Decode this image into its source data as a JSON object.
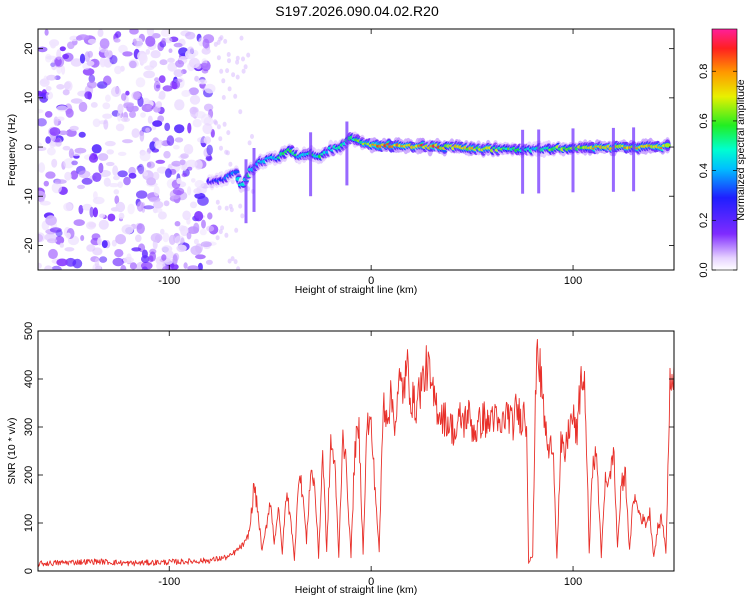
{
  "figure": {
    "title": "S197.2026.090.04.02.R20"
  },
  "chart_data": [
    {
      "type": "heatmap",
      "name": "spectrogram",
      "xlabel": "Height of straight line (km)",
      "ylabel": "Frequency (Hz)",
      "xlim": [
        -165,
        150
      ],
      "ylim": [
        -25,
        24
      ],
      "xticks": [
        -100,
        0,
        100
      ],
      "xtick_labels": [
        "-100",
        "0",
        "100"
      ],
      "yticks": [
        -20,
        -10,
        0,
        10,
        20
      ],
      "ytick_labels": [
        "-20",
        "-10",
        "0",
        "10",
        "20"
      ],
      "colorbar": {
        "label": "Normalized spectral amplitude",
        "range": [
          0.0,
          0.97
        ],
        "ticks": [
          0.0,
          0.2,
          0.4,
          0.6,
          0.8
        ],
        "tick_labels": [
          "0.0",
          "0.2",
          "0.4",
          "0.6",
          "0.8"
        ],
        "colormap": "rainbow (white → purple → blue → cyan → green → yellow → orange → red → magenta)"
      },
      "signal_ridge": {
        "x": [
          -80,
          -75,
          -70,
          -67,
          -64,
          -60,
          -55,
          -50,
          -45,
          -40,
          -35,
          -30,
          -25,
          -20,
          -15,
          -10,
          -5,
          0,
          10,
          20,
          30,
          40,
          50,
          60,
          70,
          80,
          90,
          100,
          110,
          120,
          130,
          140,
          148
        ],
        "freq": [
          -7,
          -7,
          -6,
          -5,
          -8,
          -5,
          -3,
          -2.5,
          -2,
          -0.5,
          -2,
          -1,
          -2,
          -0.5,
          0,
          2,
          1,
          0.5,
          0.3,
          0.2,
          0.1,
          0,
          -0.2,
          -0.4,
          -0.5,
          -0.5,
          -0.3,
          -0.2,
          -0.1,
          -0.1,
          0,
          0,
          0.1
        ],
        "amplitude": [
          0.25,
          0.3,
          0.35,
          0.4,
          0.45,
          0.5,
          0.45,
          0.4,
          0.5,
          0.6,
          0.45,
          0.5,
          0.55,
          0.45,
          0.5,
          0.55,
          0.6,
          0.8,
          0.85,
          0.8,
          0.85,
          0.7,
          0.75,
          0.65,
          0.55,
          0.45,
          0.6,
          0.65,
          0.75,
          0.8,
          0.75,
          0.8,
          0.7
        ]
      },
      "noise_region_x": [
        -165,
        -78
      ]
    },
    {
      "type": "line",
      "name": "snr",
      "xlabel": "Height of straight line (km)",
      "ylabel": "SNR (10 * v/v)",
      "xlim": [
        -165,
        150
      ],
      "ylim": [
        0,
        500
      ],
      "xticks": [
        -100,
        0,
        100
      ],
      "xtick_labels": [
        "-100",
        "0",
        "100"
      ],
      "yticks": [
        0,
        100,
        200,
        300,
        400,
        500
      ],
      "ytick_labels": [
        "0",
        "100",
        "200",
        "300",
        "400",
        "500"
      ],
      "series": [
        {
          "name": "SNR",
          "color": "#e8302a",
          "x": [
            -165,
            -150,
            -135,
            -120,
            -105,
            -90,
            -80,
            -70,
            -66,
            -62,
            -60,
            -58,
            -56,
            -54,
            -52,
            -50,
            -48,
            -46,
            -44,
            -42,
            -40,
            -38,
            -36,
            -34,
            -32,
            -30,
            -28,
            -26,
            -24,
            -22,
            -20,
            -18,
            -16,
            -14,
            -12,
            -10,
            -8,
            -6,
            -4,
            -2,
            0,
            2,
            4,
            6,
            8,
            10,
            12,
            14,
            16,
            18,
            20,
            22,
            24,
            26,
            28,
            30,
            32,
            34,
            36,
            38,
            40,
            42,
            44,
            46,
            48,
            50,
            52,
            54,
            56,
            58,
            60,
            62,
            64,
            66,
            68,
            70,
            72,
            74,
            76,
            77,
            78,
            79,
            80,
            82,
            84,
            86,
            88,
            90,
            92,
            94,
            96,
            98,
            100,
            102,
            104,
            106,
            108,
            110,
            112,
            114,
            116,
            118,
            120,
            122,
            124,
            126,
            128,
            130,
            132,
            134,
            136,
            138,
            140,
            142,
            144,
            146,
            148,
            150
          ],
          "y": [
            15,
            18,
            20,
            16,
            18,
            20,
            22,
            30,
            45,
            60,
            90,
            180,
            120,
            40,
            90,
            150,
            60,
            130,
            40,
            160,
            120,
            20,
            200,
            170,
            60,
            210,
            180,
            30,
            250,
            40,
            270,
            220,
            30,
            300,
            190,
            30,
            260,
            290,
            40,
            310,
            300,
            170,
            40,
            350,
            330,
            360,
            310,
            390,
            380,
            420,
            360,
            340,
            380,
            400,
            430,
            370,
            350,
            330,
            320,
            310,
            300,
            280,
            320,
            310,
            330,
            300,
            290,
            310,
            320,
            300,
            330,
            310,
            290,
            320,
            330,
            300,
            340,
            320,
            330,
            300,
            20,
            30,
            30,
            490,
            400,
            310,
            240,
            280,
            30,
            260,
            240,
            300,
            320,
            280,
            410,
            370,
            40,
            250,
            220,
            30,
            200,
            180,
            260,
            50,
            180,
            200,
            40,
            160,
            130,
            110,
            100,
            120,
            30,
            90,
            110,
            40,
            380,
            430
          ]
        }
      ]
    }
  ]
}
